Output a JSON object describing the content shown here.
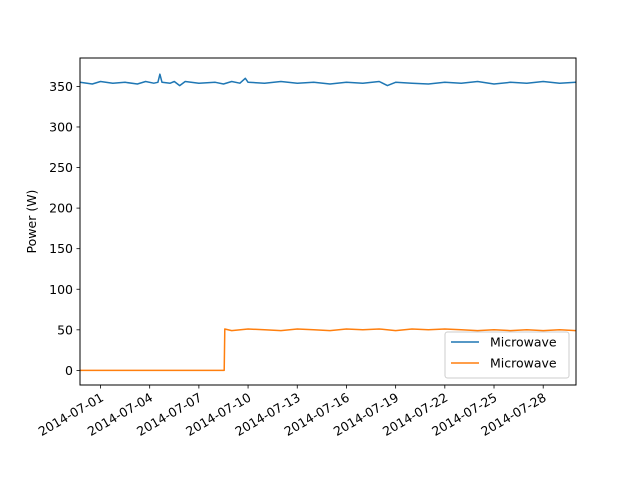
{
  "chart_data": {
    "type": "line",
    "title": "",
    "xlabel": "",
    "ylabel": "Power (W)",
    "x_axis": {
      "type": "date",
      "range": [
        "2014-06-29T18:00",
        "2014-07-30T00:00"
      ],
      "ticks": [
        "2014-07-01",
        "2014-07-04",
        "2014-07-07",
        "2014-07-10",
        "2014-07-13",
        "2014-07-16",
        "2014-07-19",
        "2014-07-22",
        "2014-07-25",
        "2014-07-28"
      ]
    },
    "y_axis": {
      "range": [
        -18,
        385
      ],
      "ticks": [
        0,
        50,
        100,
        150,
        200,
        250,
        300,
        350
      ]
    },
    "grid": false,
    "legend": {
      "placement": "lower-right"
    },
    "series": [
      {
        "name": "Microwave",
        "color": "#1f77b4",
        "points": [
          [
            "2014-06-29T18:00",
            355
          ],
          [
            "2014-06-30T12:00",
            353
          ],
          [
            "2014-07-01T00:00",
            356
          ],
          [
            "2014-07-01T18:00",
            354
          ],
          [
            "2014-07-02T12:00",
            355
          ],
          [
            "2014-07-03T06:00",
            353
          ],
          [
            "2014-07-03T18:00",
            356
          ],
          [
            "2014-07-04T06:00",
            354
          ],
          [
            "2014-07-04T12:00",
            355
          ],
          [
            "2014-07-04T15:00",
            365
          ],
          [
            "2014-07-04T18:00",
            355
          ],
          [
            "2014-07-05T06:00",
            354
          ],
          [
            "2014-07-05T12:00",
            356
          ],
          [
            "2014-07-05T20:00",
            351
          ],
          [
            "2014-07-06T04:00",
            356
          ],
          [
            "2014-07-07T00:00",
            354
          ],
          [
            "2014-07-08T00:00",
            355
          ],
          [
            "2014-07-08T12:00",
            353
          ],
          [
            "2014-07-09T00:00",
            356
          ],
          [
            "2014-07-09T12:00",
            354
          ],
          [
            "2014-07-09T20:00",
            360
          ],
          [
            "2014-07-10T00:00",
            355
          ],
          [
            "2014-07-11T00:00",
            354
          ],
          [
            "2014-07-12T00:00",
            356
          ],
          [
            "2014-07-13T00:00",
            354
          ],
          [
            "2014-07-14T00:00",
            355
          ],
          [
            "2014-07-15T00:00",
            353
          ],
          [
            "2014-07-16T00:00",
            355
          ],
          [
            "2014-07-17T00:00",
            354
          ],
          [
            "2014-07-18T00:00",
            356
          ],
          [
            "2014-07-18T12:00",
            351
          ],
          [
            "2014-07-19T00:00",
            355
          ],
          [
            "2014-07-20T00:00",
            354
          ],
          [
            "2014-07-21T00:00",
            353
          ],
          [
            "2014-07-22T00:00",
            355
          ],
          [
            "2014-07-23T00:00",
            354
          ],
          [
            "2014-07-24T00:00",
            356
          ],
          [
            "2014-07-25T00:00",
            353
          ],
          [
            "2014-07-26T00:00",
            355
          ],
          [
            "2014-07-27T00:00",
            354
          ],
          [
            "2014-07-28T00:00",
            356
          ],
          [
            "2014-07-29T00:00",
            354
          ],
          [
            "2014-07-30T00:00",
            355
          ]
        ]
      },
      {
        "name": "Microwave",
        "color": "#ff7f0e",
        "points": [
          [
            "2014-06-29T18:00",
            0
          ],
          [
            "2014-07-08T13:00",
            0
          ],
          [
            "2014-07-08T14:00",
            51
          ],
          [
            "2014-07-09T00:00",
            49
          ],
          [
            "2014-07-10T00:00",
            51
          ],
          [
            "2014-07-11T00:00",
            50
          ],
          [
            "2014-07-12T00:00",
            49
          ],
          [
            "2014-07-13T00:00",
            51
          ],
          [
            "2014-07-14T00:00",
            50
          ],
          [
            "2014-07-15T00:00",
            49
          ],
          [
            "2014-07-16T00:00",
            51
          ],
          [
            "2014-07-17T00:00",
            50
          ],
          [
            "2014-07-18T00:00",
            51
          ],
          [
            "2014-07-19T00:00",
            49
          ],
          [
            "2014-07-20T00:00",
            51
          ],
          [
            "2014-07-21T00:00",
            50
          ],
          [
            "2014-07-22T00:00",
            51
          ],
          [
            "2014-07-23T00:00",
            50
          ],
          [
            "2014-07-24T00:00",
            49
          ],
          [
            "2014-07-25T00:00",
            50
          ],
          [
            "2014-07-26T00:00",
            49
          ],
          [
            "2014-07-27T00:00",
            50
          ],
          [
            "2014-07-28T00:00",
            49
          ],
          [
            "2014-07-29T00:00",
            50
          ],
          [
            "2014-07-30T00:00",
            49
          ]
        ]
      }
    ]
  }
}
